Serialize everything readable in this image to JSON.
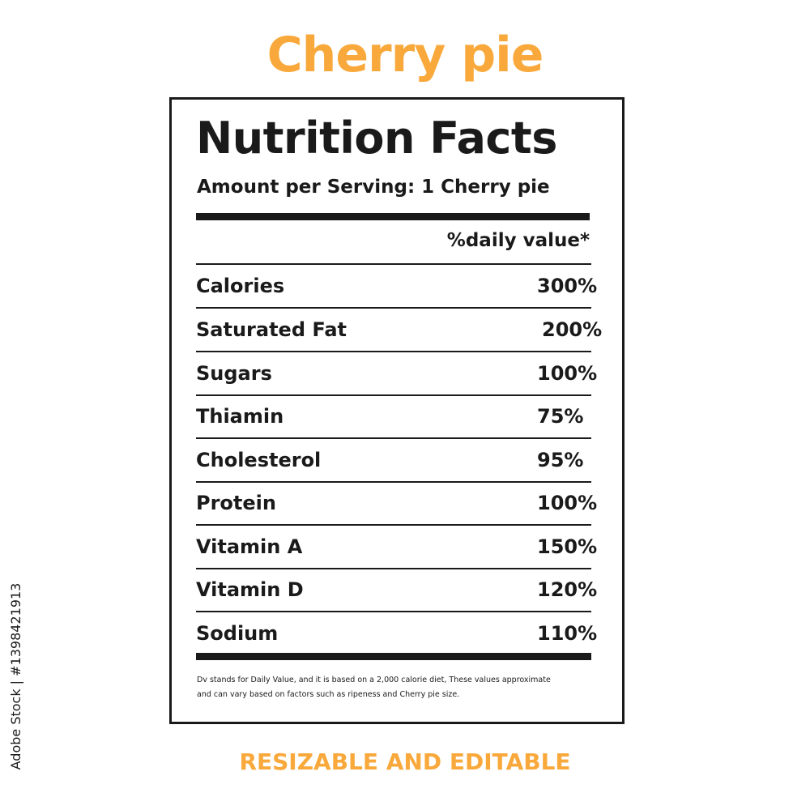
{
  "title": "Cherry pie",
  "label": {
    "heading": "Nutrition Facts",
    "serving": "Amount per Serving: 1  Cherry pie",
    "daily_value_header": "%daily value*",
    "nutrients": [
      {
        "name": "Calories",
        "value": "300%"
      },
      {
        "name": "Saturated Fat",
        "value": "200%"
      },
      {
        "name": "Sugars",
        "value": "100%"
      },
      {
        "name": "Thiamin",
        "value": "75%"
      },
      {
        "name": "Cholesterol",
        "value": "95%"
      },
      {
        "name": "Protein",
        "value": "100%"
      },
      {
        "name": "Vitamin A",
        "value": "150%"
      },
      {
        "name": "Vitamin D",
        "value": "120%"
      },
      {
        "name": "Sodium",
        "value": "110%"
      }
    ],
    "footnote_line1": "Dv stands for Daily Value, and it is based on a 2,000 calorie diet, These values approximate",
    "footnote_line2": "and can vary based on factors such as ripeness and Cherry pie size."
  },
  "bottom_caption": "RESIZABLE AND EDITABLE",
  "stock_id": "Adobe Stock | #1398421913",
  "colors": {
    "accent": "#F9A93B",
    "text": "#1A1A1A",
    "background": "#FFFFFF"
  }
}
